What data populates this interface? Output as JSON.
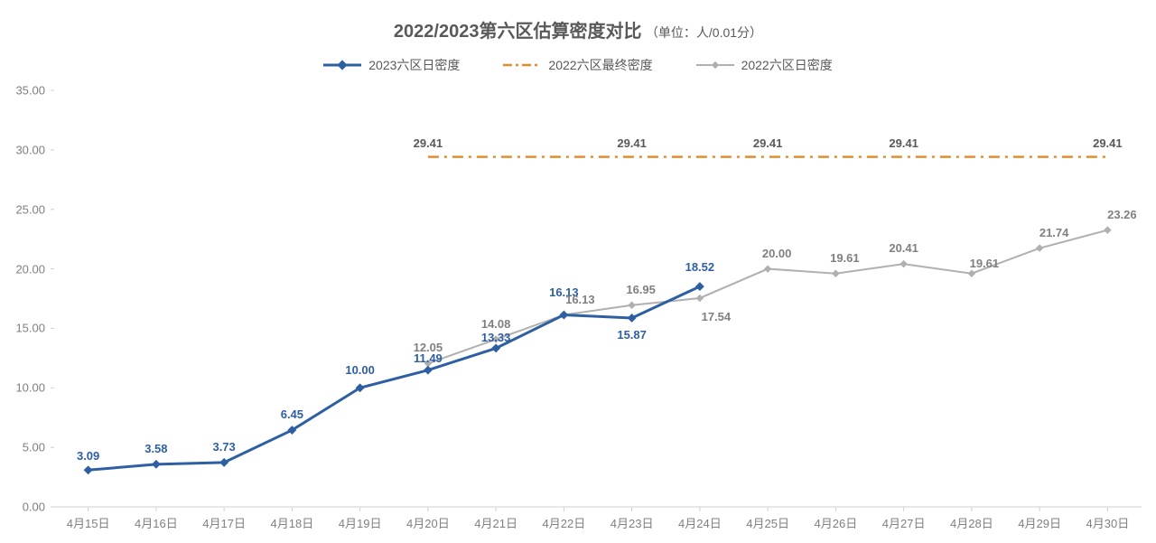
{
  "title": {
    "main": "2022/2023第六区估算密度对比",
    "sub": "（单位：人/0.01分）",
    "main_fontsize": 20,
    "sub_fontsize": 14,
    "color": "#595959"
  },
  "legend": {
    "items": [
      {
        "label": "2023六区日密度",
        "type": "line-marker",
        "color": "#2e5fa3",
        "marker": "diamond"
      },
      {
        "label": "2022六区最终密度",
        "type": "dash-dot",
        "color": "#e28d2b"
      },
      {
        "label": "2022六区日密度",
        "type": "line-marker",
        "color": "#b0b0b0",
        "marker": "diamond"
      }
    ],
    "fontsize": 14,
    "text_color": "#595959"
  },
  "axes": {
    "ylim": [
      0,
      35
    ],
    "ytick_step": 5,
    "yticks": [
      "0.00",
      "5.00",
      "10.00",
      "15.00",
      "20.00",
      "25.00",
      "30.00",
      "35.00"
    ],
    "xcategories": [
      "4月15日",
      "4月16日",
      "4月17日",
      "4月18日",
      "4月19日",
      "4月20日",
      "4月21日",
      "4月22日",
      "4月23日",
      "4月24日",
      "4月25日",
      "4月26日",
      "4月27日",
      "4月28日",
      "4月29日",
      "4月30日"
    ],
    "tick_color": "#808080",
    "axis_line_color": "#d0d0d0",
    "tick_fontsize": 13
  },
  "series": {
    "s2023": {
      "name": "2023六区日密度",
      "color": "#2e5fa3",
      "line_width": 3,
      "marker": "diamond",
      "marker_size": 7,
      "label_color": "#2e5fa3",
      "values": [
        3.09,
        3.58,
        3.73,
        6.45,
        10.0,
        11.49,
        13.33,
        16.13,
        15.87,
        18.52,
        null,
        null,
        null,
        null,
        null,
        null
      ],
      "data_labels": [
        "3.09",
        "3.58",
        "3.73",
        "6.45",
        "10.00",
        "11.49",
        "13.33",
        "16.13",
        "15.87",
        "18.52"
      ],
      "label_dy": [
        -8,
        -10,
        -10,
        -10,
        -12,
        -6,
        -4,
        -18,
        8,
        -14
      ]
    },
    "s2022final": {
      "name": "2022六区最终密度",
      "color": "#e28d2b",
      "line_width": 2.5,
      "dash": "dash-dot",
      "values": [
        null,
        null,
        null,
        null,
        null,
        29.41,
        29.41,
        29.41,
        29.41,
        29.41,
        29.41,
        29.41,
        29.41,
        29.41,
        29.41,
        29.41
      ],
      "data_labels_at": [
        5,
        8,
        10,
        12,
        15
      ],
      "data_label_text": "29.41",
      "label_color": "#595959"
    },
    "s2022daily": {
      "name": "2022六区日密度",
      "color": "#b0b0b0",
      "line_width": 2,
      "marker": "diamond",
      "marker_size": 6,
      "label_color": "#808080",
      "values": [
        null,
        null,
        null,
        null,
        null,
        12.05,
        14.08,
        16.13,
        16.95,
        17.54,
        20.0,
        19.61,
        20.41,
        19.61,
        21.74,
        23.26
      ],
      "data_labels": [
        null,
        null,
        null,
        null,
        null,
        "12.05",
        "14.08",
        "16.13",
        "16.95",
        "17.54",
        "20.00",
        "19.61",
        "20.41",
        "19.61",
        "21.74",
        "23.26"
      ],
      "label_dy": [
        0,
        0,
        0,
        0,
        0,
        -10,
        -10,
        -10,
        -10,
        10,
        -10,
        -10,
        -10,
        -4,
        -10,
        -10
      ],
      "label_dx": [
        0,
        0,
        0,
        0,
        0,
        0,
        0,
        18,
        10,
        18,
        10,
        10,
        0,
        14,
        16,
        16
      ]
    }
  },
  "background_color": "#ffffff"
}
